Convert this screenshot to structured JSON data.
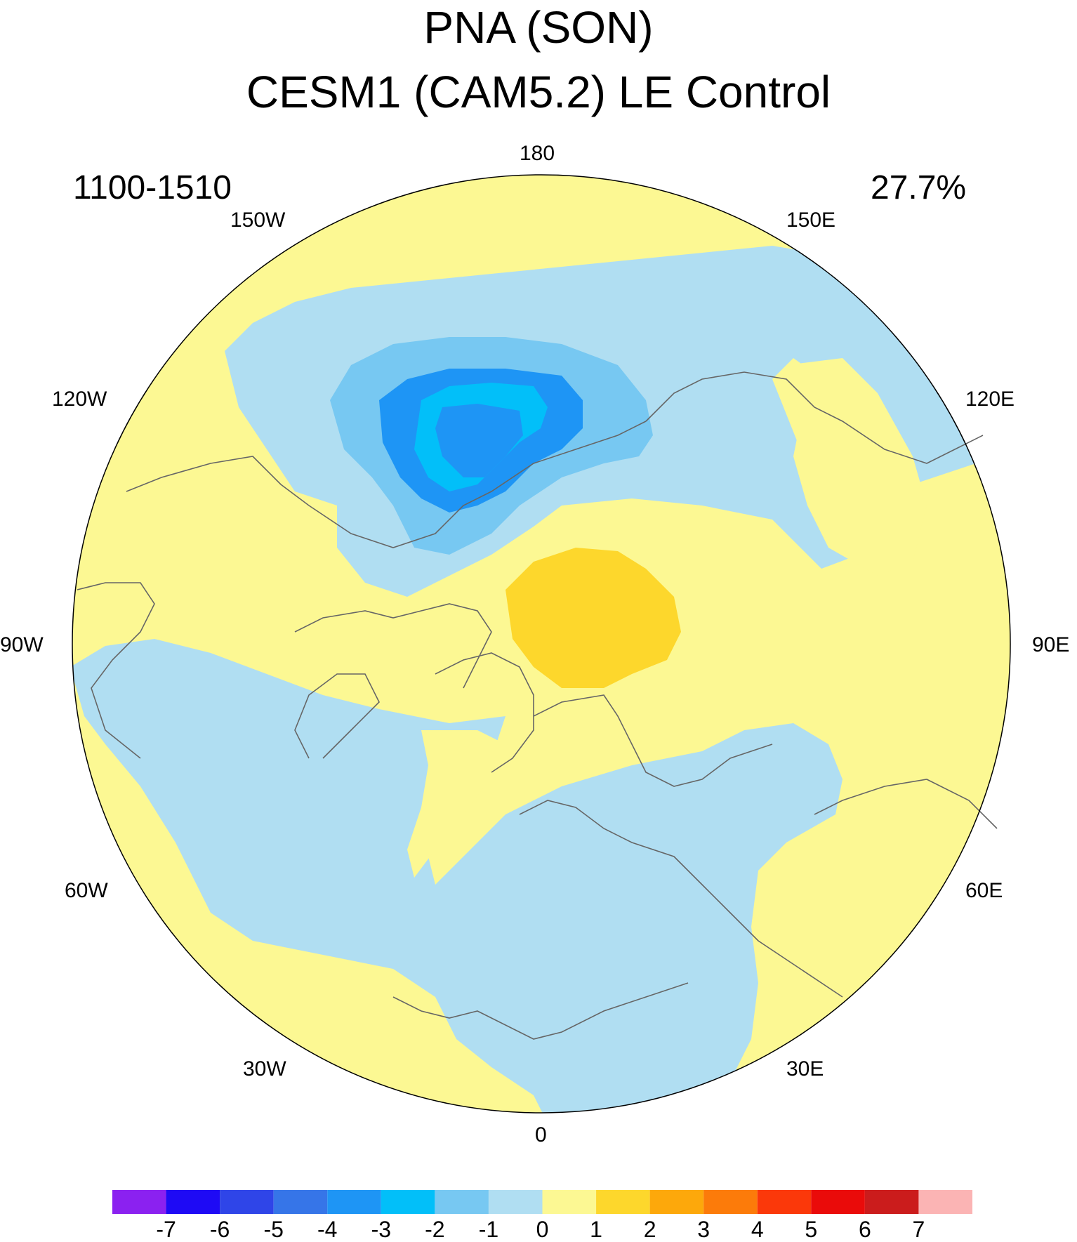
{
  "title": "PNA (SON)",
  "subtitle": "CESM1 (CAM5.2) LE Control",
  "period": "1100-1510",
  "variance": "27.7%",
  "longitude_labels": {
    "top": "180",
    "top_left": "150W",
    "top_right": "150E",
    "upper_left": "120W",
    "upper_right": "120E",
    "left": "90W",
    "right": "90E",
    "lower_left": "60W",
    "lower_right": "60E",
    "bottom_left": "30W",
    "bottom_right": "30E",
    "bottom": "0"
  },
  "colorbar": {
    "labels": [
      "-7",
      "-6",
      "-5",
      "-4",
      "-3",
      "-2",
      "-1",
      "0",
      "1",
      "2",
      "3",
      "4",
      "5",
      "6",
      "7"
    ],
    "colors": [
      "#8b21f0",
      "#1e0af5",
      "#2f45e8",
      "#3675e8",
      "#1e95f5",
      "#02bff9",
      "#77c8f2",
      "#b0def2",
      "#fcf893",
      "#fdd72c",
      "#fda80b",
      "#fc7b0a",
      "#fb380a",
      "#ea0b0a",
      "#cb1c1c",
      "#fbb4b4"
    ]
  },
  "colors": {
    "background": "#fcf893",
    "coastline": "#666666"
  }
}
